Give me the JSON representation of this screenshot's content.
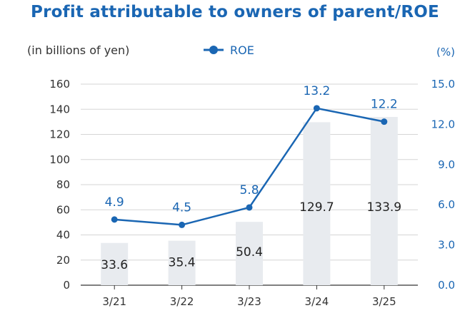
{
  "title": "Profit attributable to owners of parent/ROE",
  "colors": {
    "title": "#1a66b3",
    "line": "#1a66b3",
    "bar": "#e8ebef",
    "grid": "#d5d5d5",
    "axis": "#333333"
  },
  "chart_data": {
    "type": "bar+line",
    "categories": [
      "3/21",
      "3/22",
      "3/23",
      "3/24",
      "3/25"
    ],
    "series": [
      {
        "type": "bar",
        "axis": "left",
        "values": [
          33.6,
          35.4,
          50.4,
          129.7,
          133.9
        ]
      },
      {
        "name": "ROE",
        "type": "line",
        "axis": "right",
        "values": [
          4.9,
          4.5,
          5.8,
          13.2,
          12.2
        ]
      }
    ],
    "left_axis": {
      "label": "(in billions of yen)",
      "ylim": [
        0,
        160
      ],
      "ticks": [
        "0",
        "20",
        "40",
        "60",
        "80",
        "100",
        "120",
        "140",
        "160"
      ]
    },
    "right_axis": {
      "label": "(%)",
      "ylim": [
        0,
        15
      ],
      "ticks": [
        "0.0",
        "3.0",
        "6.0",
        "9.0",
        "12.0",
        "15.0"
      ]
    },
    "bar_labels": [
      "33.6",
      "35.4",
      "50.4",
      "129.7",
      "133.9"
    ],
    "roe_labels": [
      "4.9",
      "4.5",
      "5.8",
      "13.2",
      "12.2"
    ],
    "legend": {
      "label": "ROE",
      "placement": "top-center"
    },
    "grid": true
  }
}
